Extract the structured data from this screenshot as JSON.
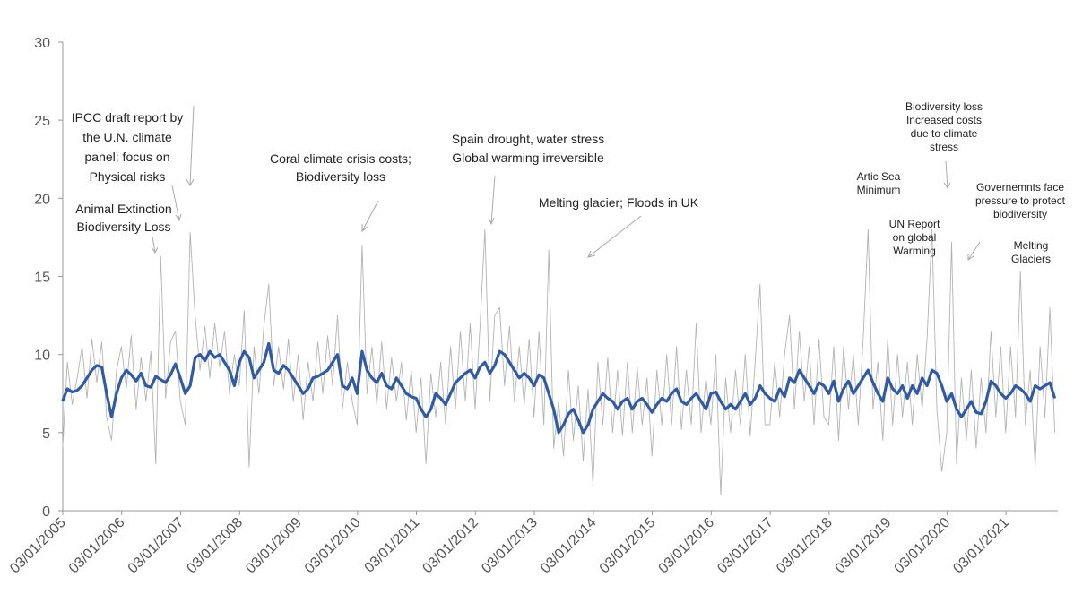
{
  "chart_data": {
    "type": "line",
    "x": [
      "2005-01",
      "2005-02",
      "2005-03",
      "2005-04",
      "2005-05",
      "2005-06",
      "2005-07",
      "2005-08",
      "2005-09",
      "2005-10",
      "2005-11",
      "2005-12",
      "2006-01",
      "2006-02",
      "2006-03",
      "2006-04",
      "2006-05",
      "2006-06",
      "2006-07",
      "2006-08",
      "2006-09",
      "2006-10",
      "2006-11",
      "2006-12",
      "2007-01",
      "2007-02",
      "2007-03",
      "2007-04",
      "2007-05",
      "2007-06",
      "2007-07",
      "2007-08",
      "2007-09",
      "2007-10",
      "2007-11",
      "2007-12",
      "2008-01",
      "2008-02",
      "2008-03",
      "2008-04",
      "2008-05",
      "2008-06",
      "2008-07",
      "2008-08",
      "2008-09",
      "2008-10",
      "2008-11",
      "2008-12",
      "2009-01",
      "2009-02",
      "2009-03",
      "2009-04",
      "2009-05",
      "2009-06",
      "2009-07",
      "2009-08",
      "2009-09",
      "2009-10",
      "2009-11",
      "2009-12",
      "2010-01",
      "2010-02",
      "2010-03",
      "2010-04",
      "2010-05",
      "2010-06",
      "2010-07",
      "2010-08",
      "2010-09",
      "2010-10",
      "2010-11",
      "2010-12",
      "2011-01",
      "2011-02",
      "2011-03",
      "2011-04",
      "2011-05",
      "2011-06",
      "2011-07",
      "2011-08",
      "2011-09",
      "2011-10",
      "2011-11",
      "2011-12",
      "2012-01",
      "2012-02",
      "2012-03",
      "2012-04",
      "2012-05",
      "2012-06",
      "2012-07",
      "2012-08",
      "2012-09",
      "2012-10",
      "2012-11",
      "2012-12",
      "2013-01",
      "2013-02",
      "2013-03",
      "2013-04",
      "2013-05",
      "2013-06",
      "2013-07",
      "2013-08",
      "2013-09",
      "2013-10",
      "2013-11",
      "2013-12",
      "2014-01",
      "2014-02",
      "2014-03",
      "2014-04",
      "2014-05",
      "2014-06",
      "2014-07",
      "2014-08",
      "2014-09",
      "2014-10",
      "2014-11",
      "2014-12",
      "2015-01",
      "2015-02",
      "2015-03",
      "2015-04",
      "2015-05",
      "2015-06",
      "2015-07",
      "2015-08",
      "2015-09",
      "2015-10",
      "2015-11",
      "2015-12",
      "2016-01",
      "2016-02",
      "2016-03",
      "2016-04",
      "2016-05",
      "2016-06",
      "2016-07",
      "2016-08",
      "2016-09",
      "2016-10",
      "2016-11",
      "2016-12",
      "2017-01",
      "2017-02",
      "2017-03",
      "2017-04",
      "2017-05",
      "2017-06",
      "2017-07",
      "2017-08",
      "2017-09",
      "2017-10",
      "2017-11",
      "2017-12",
      "2018-01",
      "2018-02",
      "2018-03",
      "2018-04",
      "2018-05",
      "2018-06",
      "2018-07",
      "2018-08",
      "2018-09",
      "2018-10",
      "2018-11",
      "2018-12",
      "2019-01",
      "2019-02",
      "2019-03",
      "2019-04",
      "2019-05",
      "2019-06",
      "2019-07",
      "2019-08",
      "2019-09",
      "2019-10",
      "2019-11",
      "2019-12",
      "2020-01",
      "2020-02",
      "2020-03",
      "2020-04",
      "2020-05",
      "2020-06",
      "2020-07",
      "2020-08",
      "2020-09",
      "2020-10",
      "2020-11",
      "2020-12",
      "2021-01",
      "2021-02",
      "2021-03",
      "2021-04",
      "2021-05",
      "2021-06",
      "2021-07",
      "2021-08",
      "2021-09",
      "2021-10",
      "2021-11"
    ],
    "series": [
      {
        "color": "#b3b3b3",
        "width": 0.9,
        "values": [
          3.8,
          9.5,
          6.8,
          8.5,
          10.5,
          7.2,
          11.0,
          8.2,
          10.8,
          6.0,
          4.5,
          9.0,
          10.5,
          7.8,
          11.2,
          6.5,
          9.8,
          7.0,
          10.2,
          3.0,
          16.3,
          7.2,
          10.8,
          11.5,
          7.0,
          5.5,
          17.8,
          12.5,
          9.0,
          11.8,
          8.5,
          12.0,
          9.2,
          11.5,
          7.5,
          10.0,
          8.0,
          12.8,
          2.8,
          10.5,
          7.5,
          11.8,
          14.5,
          8.0,
          10.5,
          7.8,
          11.0,
          7.0,
          10.0,
          5.8,
          9.5,
          7.0,
          10.8,
          7.5,
          11.2,
          8.0,
          12.5,
          6.5,
          9.5,
          7.0,
          5.5,
          17.0,
          7.5,
          10.5,
          6.8,
          10.8,
          6.5,
          9.8,
          7.0,
          9.5,
          5.8,
          9.0,
          5.0,
          8.5,
          3.0,
          8.8,
          6.0,
          9.5,
          5.5,
          10.5,
          6.5,
          11.5,
          7.0,
          12.0,
          6.5,
          11.8,
          18.0,
          7.0,
          12.5,
          13.0,
          8.0,
          11.8,
          7.0,
          10.5,
          6.8,
          11.0,
          6.0,
          11.5,
          5.5,
          16.7,
          4.0,
          7.0,
          3.5,
          9.0,
          4.5,
          8.0,
          3.2,
          7.8,
          1.6,
          9.5,
          5.5,
          9.8,
          5.0,
          9.0,
          4.8,
          9.5,
          5.0,
          9.2,
          5.5,
          8.5,
          3.5,
          9.0,
          5.5,
          10.0,
          5.5,
          10.5,
          5.2,
          9.0,
          5.5,
          12.0,
          5.0,
          8.5,
          5.5,
          10.0,
          1.0,
          8.5,
          5.0,
          9.0,
          5.5,
          10.0,
          4.8,
          9.5,
          14.5,
          5.5,
          5.5,
          9.5,
          6.0,
          10.0,
          12.5,
          6.5,
          11.5,
          7.0,
          10.5,
          5.5,
          11.0,
          6.0,
          5.5,
          10.5,
          4.5,
          10.5,
          6.5,
          10.0,
          5.5,
          11.0,
          18.0,
          6.5,
          9.5,
          4.5,
          11.0,
          5.5,
          10.0,
          6.0,
          9.5,
          5.5,
          10.0,
          6.5,
          11.0,
          18.0,
          6.5,
          2.5,
          5.0,
          17.2,
          3.0,
          8.5,
          4.5,
          9.0,
          4.0,
          8.5,
          5.0,
          11.5,
          6.0,
          10.5,
          5.0,
          10.5,
          6.0,
          15.3,
          5.5,
          9.0,
          2.8,
          10.5,
          6.0,
          13.0,
          5.0
        ]
      },
      {
        "color": "#2e5aa8",
        "width": 3.2,
        "values": [
          7.0,
          7.8,
          7.6,
          7.7,
          8.0,
          8.5,
          9.0,
          9.3,
          9.2,
          7.5,
          6.0,
          7.5,
          8.5,
          9.0,
          8.7,
          8.3,
          8.8,
          8.0,
          7.9,
          8.6,
          8.4,
          8.2,
          8.7,
          9.4,
          8.5,
          7.5,
          8.0,
          9.8,
          10.0,
          9.6,
          10.2,
          9.8,
          10.0,
          9.5,
          9.0,
          8.0,
          9.5,
          10.2,
          9.8,
          8.5,
          9.0,
          9.5,
          10.7,
          9.0,
          8.8,
          9.3,
          9.0,
          8.5,
          8.0,
          7.5,
          7.8,
          8.5,
          8.6,
          8.8,
          9.0,
          9.5,
          10.0,
          8.0,
          7.8,
          8.5,
          7.5,
          10.2,
          9.0,
          8.5,
          8.2,
          8.8,
          8.0,
          7.8,
          8.5,
          8.0,
          7.5,
          7.3,
          7.2,
          6.5,
          6.0,
          6.5,
          7.5,
          7.2,
          6.8,
          7.5,
          8.2,
          8.5,
          8.8,
          9.0,
          8.5,
          9.2,
          9.5,
          8.8,
          9.3,
          10.2,
          10.0,
          9.5,
          9.0,
          8.5,
          8.8,
          8.5,
          8.0,
          8.7,
          8.5,
          7.5,
          6.5,
          5.0,
          5.5,
          6.2,
          6.5,
          5.8,
          5.0,
          5.5,
          6.5,
          7.0,
          7.5,
          7.2,
          7.0,
          6.5,
          7.0,
          7.2,
          6.5,
          7.0,
          7.2,
          6.8,
          6.3,
          6.8,
          7.2,
          7.0,
          7.5,
          7.8,
          7.0,
          6.8,
          7.2,
          7.5,
          7.0,
          6.5,
          7.5,
          7.6,
          7.0,
          6.5,
          6.8,
          6.5,
          7.0,
          7.5,
          6.8,
          7.2,
          8.0,
          7.5,
          7.2,
          7.0,
          7.8,
          7.3,
          8.5,
          8.2,
          9.0,
          8.5,
          8.0,
          7.5,
          8.2,
          8.0,
          7.5,
          8.3,
          7.0,
          7.8,
          8.3,
          7.5,
          8.0,
          8.5,
          9.0,
          8.2,
          7.5,
          7.0,
          8.5,
          7.8,
          7.5,
          8.0,
          7.2,
          8.0,
          7.5,
          8.5,
          8.0,
          9.0,
          8.8,
          8.0,
          7.0,
          7.5,
          6.5,
          6.0,
          6.5,
          7.0,
          6.3,
          6.2,
          7.0,
          8.3,
          8.0,
          7.5,
          7.2,
          7.5,
          8.0,
          7.8,
          7.5,
          7.0,
          8.0,
          7.8,
          8.0,
          8.2,
          7.2
        ]
      }
    ],
    "xlim": [
      "2005-01-03",
      "2021-11-20"
    ],
    "xticks": [
      {
        "value": "2005-01-03",
        "label": "03/01/2005"
      },
      {
        "value": "2006-01-03",
        "label": "03/01/2006"
      },
      {
        "value": "2007-01-03",
        "label": "03/01/2007"
      },
      {
        "value": "2008-01-03",
        "label": "03/01/2008"
      },
      {
        "value": "2009-01-03",
        "label": "03/01/2009"
      },
      {
        "value": "2010-01-03",
        "label": "03/01/2010"
      },
      {
        "value": "2011-01-03",
        "label": "03/01/2011"
      },
      {
        "value": "2012-01-03",
        "label": "03/01/2012"
      },
      {
        "value": "2013-01-03",
        "label": "03/01/2013"
      },
      {
        "value": "2014-01-03",
        "label": "03/01/2014"
      },
      {
        "value": "2015-01-03",
        "label": "03/01/2015"
      },
      {
        "value": "2016-01-03",
        "label": "03/01/2016"
      },
      {
        "value": "2017-01-03",
        "label": "03/01/2017"
      },
      {
        "value": "2018-01-03",
        "label": "03/01/2018"
      },
      {
        "value": "2019-01-03",
        "label": "03/01/2019"
      },
      {
        "value": "2020-01-03",
        "label": "03/01/2020"
      },
      {
        "value": "2021-01-03",
        "label": "03/01/2021"
      }
    ],
    "ylim": [
      0,
      30
    ],
    "yticks": [
      0,
      5,
      10,
      15,
      20,
      25,
      30
    ],
    "annotations": [
      [
        "IPCC draft report by",
        "the U.N. climate",
        "panel; focus on",
        "Physical risks"
      ],
      [
        "Animal Extinction",
        "Biodiversity Loss"
      ],
      [
        "Coral climate crisis costs;",
        "Biodiversity loss"
      ],
      [
        "Spain drought, water stress",
        "Global warming irreversible"
      ],
      [
        "Melting glacier; Floods in UK"
      ],
      [
        "Artic Sea",
        "Minimum"
      ],
      [
        "UN Report",
        "on global",
        "Warming"
      ],
      [
        "Biodiversity loss",
        "Increased costs",
        "due to climate",
        "stress"
      ],
      [
        "Governemnts face",
        "pressure to protect",
        "biodiversity"
      ],
      [
        "Melting",
        "Glaciers"
      ]
    ]
  }
}
